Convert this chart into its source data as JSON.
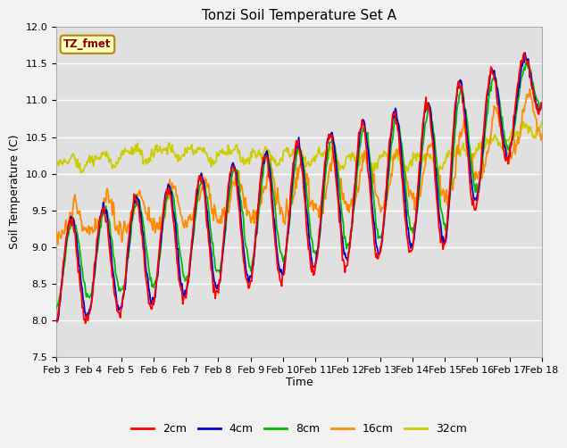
{
  "title": "Tonzi Soil Temperature Set A",
  "xlabel": "Time",
  "ylabel": "Soil Temperature (C)",
  "ylim": [
    7.5,
    12.0
  ],
  "xlim": [
    0,
    15
  ],
  "annotation": "TZ_fmet",
  "annotation_color": "#8B0000",
  "annotation_bg": "#FFFFC0",
  "annotation_border": "#B8860B",
  "bg_color": "#E0E0E0",
  "grid_color": "#FFFFFF",
  "series_colors": {
    "2cm": "#FF0000",
    "4cm": "#0000CC",
    "8cm": "#00BB00",
    "16cm": "#FF8C00",
    "32cm": "#CCCC00"
  },
  "legend_labels": [
    "2cm",
    "4cm",
    "8cm",
    "16cm",
    "32cm"
  ],
  "xtick_labels": [
    "Feb 3",
    "Feb 4",
    "Feb 5",
    "Feb 6",
    "Feb 7",
    "Feb 8",
    "Feb 9",
    "Feb 10",
    "Feb 11",
    "Feb 12",
    "Feb 13",
    "Feb 14",
    "Feb 15",
    "Feb 16",
    "Feb 17",
    "Feb 18"
  ],
  "ytick_vals": [
    7.5,
    8.0,
    8.5,
    9.0,
    9.5,
    10.0,
    10.5,
    11.0,
    11.5,
    12.0
  ],
  "n_points": 600
}
